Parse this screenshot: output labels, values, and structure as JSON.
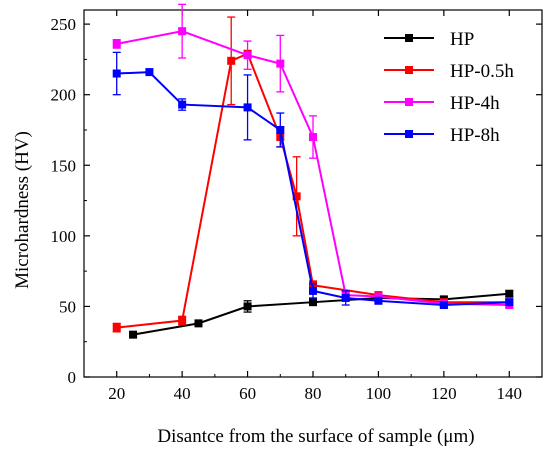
{
  "chart_data": {
    "type": "line",
    "title": "",
    "xlabel": "Disantce from the surface of sample (μm)",
    "ylabel": "Microhardness (HV)",
    "xlim": [
      10,
      150
    ],
    "ylim": [
      0,
      260
    ],
    "xticks": [
      20,
      40,
      60,
      80,
      100,
      120,
      140
    ],
    "yticks": [
      0,
      50,
      100,
      150,
      200,
      250
    ],
    "grid": false,
    "legend_position": "top-right",
    "series": [
      {
        "name": "HP",
        "color": "#000000",
        "x": [
          25,
          45,
          60,
          80,
          100,
          120,
          140
        ],
        "y": [
          30,
          38,
          50,
          53,
          56,
          55,
          59
        ],
        "err": [
          1,
          1,
          4,
          2,
          2,
          2,
          2
        ]
      },
      {
        "name": "HP-0.5h",
        "color": "#ff0000",
        "x": [
          20,
          40,
          55,
          60,
          70,
          75,
          80,
          100,
          120,
          140
        ],
        "y": [
          35,
          40,
          224,
          229,
          170,
          128,
          65,
          58,
          53,
          53
        ],
        "err": [
          3,
          3,
          31,
          2,
          7,
          28,
          3,
          2,
          2,
          2
        ]
      },
      {
        "name": "HP-4h",
        "color": "#ff00ff",
        "x": [
          20,
          40,
          60,
          70,
          80,
          90,
          100,
          120,
          140
        ],
        "y": [
          236,
          245,
          228,
          222,
          170,
          58,
          57,
          52,
          51
        ],
        "err": [
          3,
          19,
          10,
          20,
          15,
          2,
          2,
          2,
          2
        ]
      },
      {
        "name": "HP-8h",
        "color": "#0000ff",
        "x": [
          20,
          30,
          40,
          60,
          70,
          80,
          90,
          100,
          120,
          140
        ],
        "y": [
          215,
          216,
          193,
          191,
          175,
          61,
          56,
          54,
          51,
          53
        ],
        "err": [
          15,
          2,
          4,
          23,
          12,
          5,
          5,
          2,
          2,
          2
        ]
      }
    ]
  }
}
